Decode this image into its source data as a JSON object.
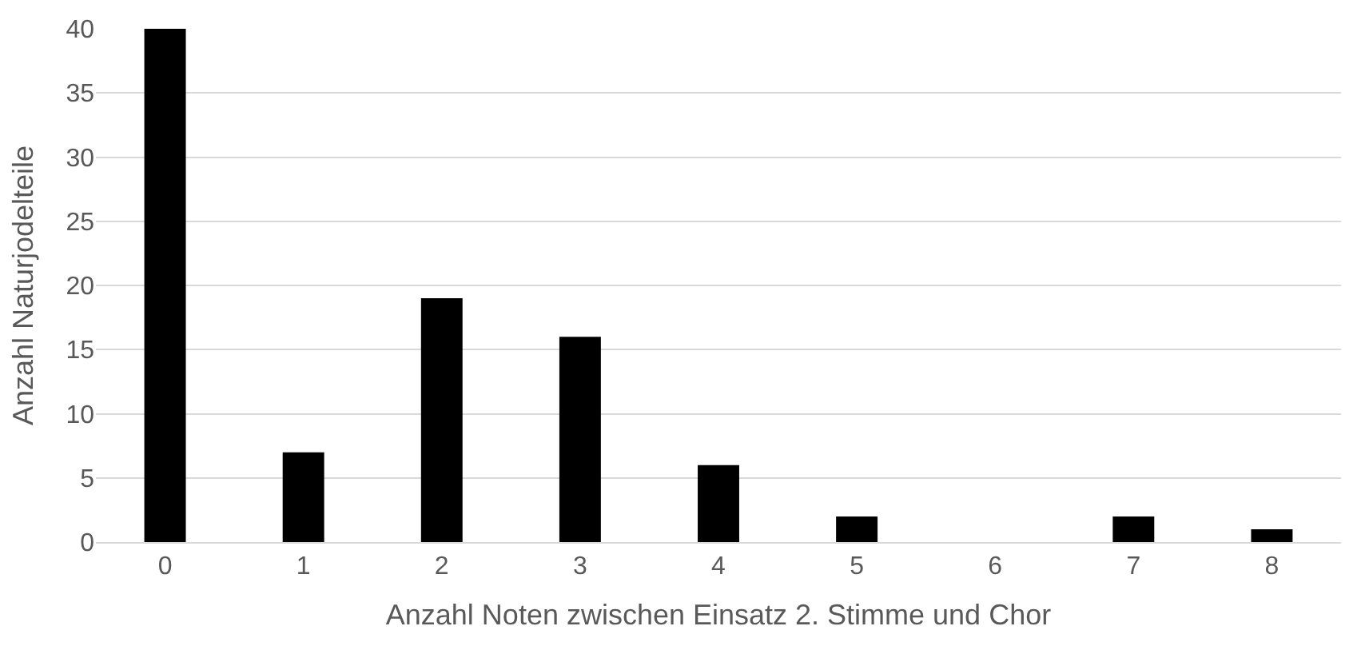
{
  "chart_data": {
    "type": "bar",
    "xlabel": "Anzahl Noten zwischen Einsatz 2. Stimme und Chor",
    "ylabel": "Anzahl Naturjodelteile",
    "categories": [
      "0",
      "1",
      "2",
      "3",
      "4",
      "5",
      "6",
      "7",
      "8"
    ],
    "values": [
      40,
      7,
      19,
      16,
      6,
      2,
      0,
      2,
      1
    ],
    "color": "#000000",
    "ylim": [
      0,
      40
    ],
    "yticks": [
      0,
      5,
      10,
      15,
      20,
      25,
      30,
      35,
      40
    ],
    "grid": "y"
  }
}
